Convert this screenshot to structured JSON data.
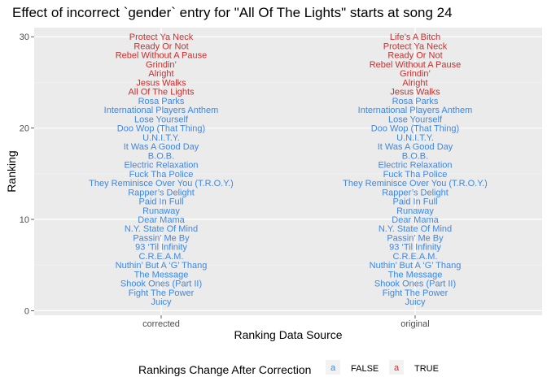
{
  "chart_data": {
    "type": "scatter",
    "title": "Effect of incorrect `gender` entry for \"All Of The Lights\" starts at song 24",
    "xlabel": "Ranking Data Source",
    "ylabel": "Ranking",
    "categories": [
      "corrected",
      "original"
    ],
    "ylim": [
      -0.5,
      31
    ],
    "yticks": [
      0,
      10,
      20,
      30
    ],
    "grid": true,
    "legend": {
      "title": "Rankings Change After Correction",
      "position": "bottom",
      "key_glyph": "a",
      "entries": [
        {
          "label": "FALSE",
          "color": "#3b87e8"
        },
        {
          "label": "TRUE",
          "color": "#cc2e2e"
        }
      ]
    },
    "series": [
      {
        "category": "corrected",
        "points": [
          {
            "rank": 1,
            "song": "Juicy",
            "changed": false
          },
          {
            "rank": 2,
            "song": "Fight The Power",
            "changed": false
          },
          {
            "rank": 3,
            "song": "Shook Ones (Part II)",
            "changed": false
          },
          {
            "rank": 4,
            "song": "The Message",
            "changed": false
          },
          {
            "rank": 5,
            "song": "Nuthin’ But A ‘G’ Thang",
            "changed": false
          },
          {
            "rank": 6,
            "song": "C.R.E.A.M.",
            "changed": false
          },
          {
            "rank": 7,
            "song": "93 ‘Til Infinity",
            "changed": false
          },
          {
            "rank": 8,
            "song": "Passin’ Me By",
            "changed": false
          },
          {
            "rank": 9,
            "song": "N.Y. State Of Mind",
            "changed": false
          },
          {
            "rank": 10,
            "song": "Dear Mama",
            "changed": false
          },
          {
            "rank": 11,
            "song": "Runaway",
            "changed": false
          },
          {
            "rank": 12,
            "song": "Paid In Full",
            "changed": false
          },
          {
            "rank": 13,
            "song": "Rapper’s Delight",
            "changed": false
          },
          {
            "rank": 14,
            "song": "They Reminisce Over You (T.R.O.Y.)",
            "changed": false
          },
          {
            "rank": 15,
            "song": "Fuck Tha Police",
            "changed": false
          },
          {
            "rank": 16,
            "song": "Electric Relaxation",
            "changed": false
          },
          {
            "rank": 17,
            "song": "B.O.B.",
            "changed": false
          },
          {
            "rank": 18,
            "song": "It Was A Good Day",
            "changed": false
          },
          {
            "rank": 19,
            "song": "U.N.I.T.Y.",
            "changed": false
          },
          {
            "rank": 20,
            "song": "Doo Wop (That Thing)",
            "changed": false
          },
          {
            "rank": 21,
            "song": "Lose Yourself",
            "changed": false
          },
          {
            "rank": 22,
            "song": "International Players Anthem",
            "changed": false
          },
          {
            "rank": 23,
            "song": "Rosa Parks",
            "changed": false
          },
          {
            "rank": 24,
            "song": "All Of The Lights",
            "changed": true
          },
          {
            "rank": 25,
            "song": "Jesus Walks",
            "changed": true
          },
          {
            "rank": 26,
            "song": "Alright",
            "changed": true
          },
          {
            "rank": 27,
            "song": "Grindin’",
            "changed": true
          },
          {
            "rank": 28,
            "song": "Rebel Without A Pause",
            "changed": true
          },
          {
            "rank": 29,
            "song": "Ready Or Not",
            "changed": true
          },
          {
            "rank": 30,
            "song": "Protect Ya Neck",
            "changed": true
          }
        ]
      },
      {
        "category": "original",
        "points": [
          {
            "rank": 1,
            "song": "Juicy",
            "changed": false
          },
          {
            "rank": 2,
            "song": "Fight The Power",
            "changed": false
          },
          {
            "rank": 3,
            "song": "Shook Ones (Part II)",
            "changed": false
          },
          {
            "rank": 4,
            "song": "The Message",
            "changed": false
          },
          {
            "rank": 5,
            "song": "Nuthin’ But A ‘G’ Thang",
            "changed": false
          },
          {
            "rank": 6,
            "song": "C.R.E.A.M.",
            "changed": false
          },
          {
            "rank": 7,
            "song": "93 ‘Til Infinity",
            "changed": false
          },
          {
            "rank": 8,
            "song": "Passin’ Me By",
            "changed": false
          },
          {
            "rank": 9,
            "song": "N.Y. State Of Mind",
            "changed": false
          },
          {
            "rank": 10,
            "song": "Dear Mama",
            "changed": false
          },
          {
            "rank": 11,
            "song": "Runaway",
            "changed": false
          },
          {
            "rank": 12,
            "song": "Paid In Full",
            "changed": false
          },
          {
            "rank": 13,
            "song": "Rapper’s Delight",
            "changed": false
          },
          {
            "rank": 14,
            "song": "They Reminisce Over You (T.R.O.Y.)",
            "changed": false
          },
          {
            "rank": 15,
            "song": "Fuck Tha Police",
            "changed": false
          },
          {
            "rank": 16,
            "song": "Electric Relaxation",
            "changed": false
          },
          {
            "rank": 17,
            "song": "B.O.B.",
            "changed": false
          },
          {
            "rank": 18,
            "song": "It Was A Good Day",
            "changed": false
          },
          {
            "rank": 19,
            "song": "U.N.I.T.Y.",
            "changed": false
          },
          {
            "rank": 20,
            "song": "Doo Wop (That Thing)",
            "changed": false
          },
          {
            "rank": 21,
            "song": "Lose Yourself",
            "changed": false
          },
          {
            "rank": 22,
            "song": "International Players Anthem",
            "changed": false
          },
          {
            "rank": 23,
            "song": "Rosa Parks",
            "changed": false
          },
          {
            "rank": 24,
            "song": "Jesus Walks",
            "changed": true
          },
          {
            "rank": 25,
            "song": "Alright",
            "changed": true
          },
          {
            "rank": 26,
            "song": "Grindin’",
            "changed": true
          },
          {
            "rank": 27,
            "song": "Rebel Without A Pause",
            "changed": true
          },
          {
            "rank": 28,
            "song": "Ready Or Not",
            "changed": true
          },
          {
            "rank": 29,
            "song": "Protect Ya Neck",
            "changed": true
          },
          {
            "rank": 30,
            "song": "Life’s A Bitch",
            "changed": true
          }
        ]
      }
    ]
  }
}
